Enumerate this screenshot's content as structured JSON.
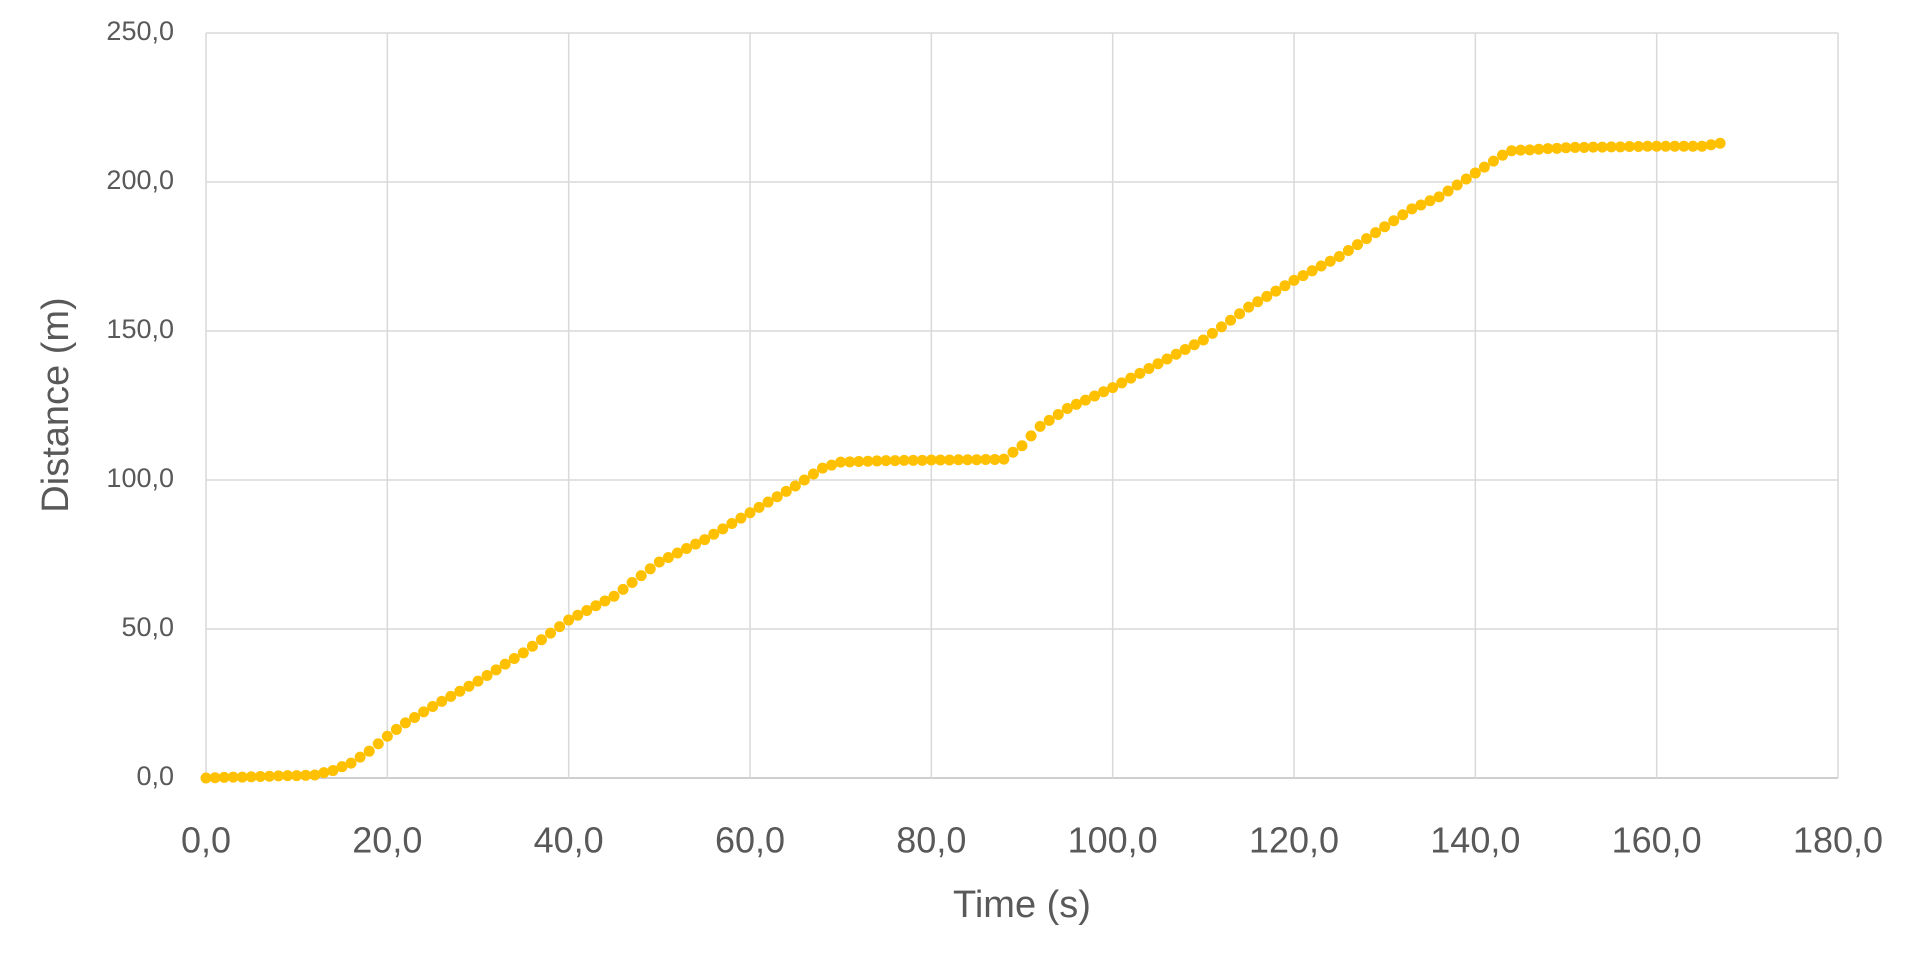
{
  "chart_data": {
    "type": "scatter",
    "x_label": "Time (s)",
    "y_label": "Distance (m)",
    "xlim": [
      0,
      180
    ],
    "ylim": [
      0,
      250
    ],
    "xticks": [
      {
        "value": 0,
        "label": "0,0"
      },
      {
        "value": 20,
        "label": "20,0"
      },
      {
        "value": 40,
        "label": "40,0"
      },
      {
        "value": 60,
        "label": "60,0"
      },
      {
        "value": 80,
        "label": "80,0"
      },
      {
        "value": 100,
        "label": "100,0"
      },
      {
        "value": 120,
        "label": "120,0"
      },
      {
        "value": 140,
        "label": "140,0"
      },
      {
        "value": 160,
        "label": "160,0"
      },
      {
        "value": 180,
        "label": "180,0"
      }
    ],
    "yticks": [
      {
        "value": 0,
        "label": "0,0"
      },
      {
        "value": 50,
        "label": "50,0"
      },
      {
        "value": 100,
        "label": "100,0"
      },
      {
        "value": 150,
        "label": "150,0"
      },
      {
        "value": 200,
        "label": "200,0"
      },
      {
        "value": 250,
        "label": "250,0"
      }
    ],
    "grid": true,
    "color": "#ffc000",
    "x": [
      0,
      1,
      2,
      3,
      4,
      5,
      6,
      7,
      8,
      9,
      10,
      11,
      12,
      13,
      14,
      15,
      16,
      17,
      18,
      19,
      20,
      21,
      22,
      23,
      24,
      25,
      26,
      27,
      28,
      29,
      30,
      31,
      32,
      33,
      34,
      35,
      36,
      37,
      38,
      39,
      40,
      41,
      42,
      43,
      44,
      45,
      46,
      47,
      48,
      49,
      50,
      51,
      52,
      53,
      54,
      55,
      56,
      57,
      58,
      59,
      60,
      61,
      62,
      63,
      64,
      65,
      66,
      67,
      68,
      69,
      70,
      71,
      72,
      73,
      74,
      75,
      76,
      77,
      78,
      79,
      80,
      81,
      82,
      83,
      84,
      85,
      86,
      87,
      88,
      89,
      90,
      91,
      92,
      93,
      94,
      95,
      96,
      97,
      98,
      99,
      100,
      101,
      102,
      103,
      104,
      105,
      106,
      107,
      108,
      109,
      110,
      111,
      112,
      113,
      114,
      115,
      116,
      117,
      118,
      119,
      120,
      121,
      122,
      123,
      124,
      125,
      126,
      127,
      128,
      129,
      130,
      131,
      132,
      133,
      134,
      135,
      136,
      137,
      138,
      139,
      140,
      141,
      142,
      143,
      144,
      145,
      146,
      147,
      148,
      149,
      150,
      151,
      152,
      153,
      154,
      155,
      156,
      157,
      158,
      159,
      160,
      161,
      162,
      163,
      164,
      165,
      166,
      167
    ],
    "values": [
      0,
      0.1,
      0.2,
      0.3,
      0.3,
      0.4,
      0.5,
      0.6,
      0.7,
      0.8,
      0.8,
      0.9,
      1.0,
      1.8,
      2.5,
      3.8,
      5,
      7,
      9,
      11.5,
      14,
      16.3,
      18.5,
      20.3,
      22.2,
      24,
      25.7,
      27.4,
      29.1,
      30.8,
      32.5,
      34.4,
      36.3,
      38.2,
      40.1,
      42,
      44.2,
      46.4,
      48.6,
      50.8,
      53,
      54.6,
      56.2,
      57.8,
      59.4,
      61,
      63.3,
      65.6,
      67.9,
      70.2,
      72.5,
      74,
      75.5,
      77,
      78.5,
      80,
      81.8,
      83.6,
      85.4,
      87.2,
      89,
      90.8,
      92.6,
      94.4,
      96.2,
      98,
      100,
      102,
      104,
      105,
      106,
      106.1,
      106.2,
      106.3,
      106.4,
      106.5,
      106.5,
      106.6,
      106.6,
      106.6,
      106.7,
      106.7,
      106.7,
      106.8,
      106.8,
      106.8,
      106.9,
      106.9,
      107,
      109.3,
      111.5,
      114.8,
      118,
      120,
      122,
      124,
      125.4,
      126.8,
      128.2,
      129.6,
      131,
      132.6,
      134.2,
      135.8,
      137.4,
      139,
      140.6,
      142.2,
      143.8,
      145.4,
      147,
      149.2,
      151.4,
      153.6,
      155.8,
      158,
      159.8,
      161.6,
      163.4,
      165.2,
      167,
      168.6,
      170.2,
      171.8,
      173.4,
      175,
      177,
      179,
      181,
      183,
      185,
      187,
      189,
      191,
      192.3,
      193.7,
      195,
      197,
      199,
      201,
      203,
      205,
      207,
      209,
      210.5,
      210.7,
      210.8,
      211,
      211.2,
      211.3,
      211.5,
      211.6,
      211.6,
      211.7,
      211.7,
      211.8,
      211.8,
      211.9,
      211.9,
      212.0,
      212,
      212,
      212,
      212,
      212,
      212,
      212.5,
      213
    ]
  }
}
